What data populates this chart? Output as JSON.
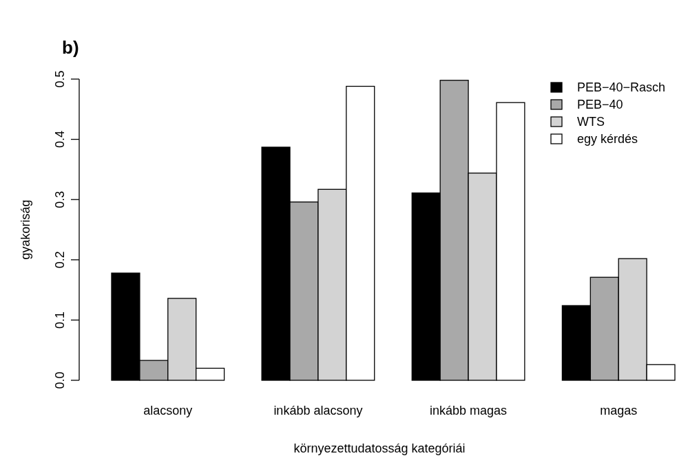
{
  "chart_data": {
    "type": "bar",
    "title": "b)",
    "xlabel": "környezettudatosság kategóriái",
    "ylabel": "gyakoriság",
    "categories": [
      "alacsony",
      "inkább alacsony",
      "inkább magas",
      "magas"
    ],
    "series": [
      {
        "name": "PEB−40−Rasch",
        "color": "#000000",
        "values": [
          0.178,
          0.387,
          0.311,
          0.124
        ]
      },
      {
        "name": "PEB−40",
        "color": "#a9a9a9",
        "values": [
          0.033,
          0.296,
          0.498,
          0.171
        ]
      },
      {
        "name": "WTS",
        "color": "#d3d3d3",
        "values": [
          0.136,
          0.317,
          0.344,
          0.202
        ]
      },
      {
        "name": "egy kérdés",
        "color": "#ffffff",
        "values": [
          0.02,
          0.488,
          0.461,
          0.026
        ]
      }
    ],
    "ylim": [
      0,
      0.5
    ],
    "yticks": [
      {
        "value": 0,
        "label": "0.0"
      },
      0.1,
      0.2,
      0.3,
      0.4,
      0.5
    ],
    "grid": false,
    "legend": "top right"
  }
}
